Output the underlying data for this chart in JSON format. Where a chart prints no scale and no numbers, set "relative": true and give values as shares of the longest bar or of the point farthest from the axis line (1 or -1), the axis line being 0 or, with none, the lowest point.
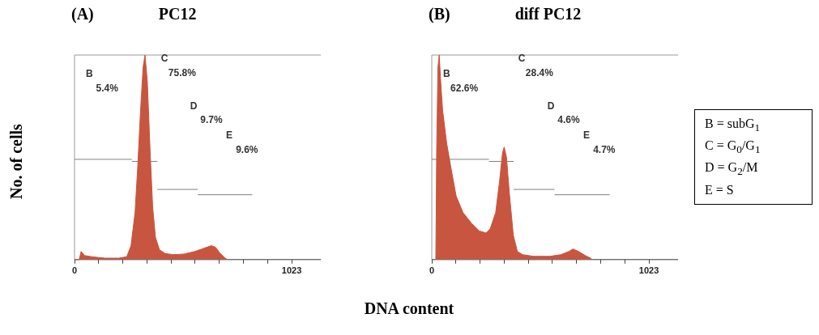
{
  "chart_data": [
    {
      "type": "area",
      "title": "(A)",
      "subtitle": "PC12",
      "xlabel": "DNA content",
      "ylabel": "No. of cells",
      "relative": true,
      "xlim": [
        0,
        1160
      ],
      "xticks": [
        {
          "value": 0,
          "label": "0"
        },
        {
          "value": 113.7,
          "label": null
        },
        {
          "value": 227.3,
          "label": null
        },
        {
          "value": 341,
          "label": null
        },
        {
          "value": 454.7,
          "label": null
        },
        {
          "value": 568.3,
          "label": null
        },
        {
          "value": 682,
          "label": null
        },
        {
          "value": 795.7,
          "label": null
        },
        {
          "value": 909.3,
          "label": null
        },
        {
          "value": 1023,
          "label": "1023"
        }
      ],
      "series": [
        {
          "type": "area",
          "color": "#c8553f",
          "x": [
            0,
            22,
            31,
            47,
            80,
            144,
            208,
            246,
            266,
            285,
            298,
            311,
            323,
            332,
            343,
            356,
            368,
            381,
            400,
            426,
            465,
            516,
            567,
            606,
            644,
            664,
            683,
            709,
            721
          ],
          "values": [
            0,
            0,
            0.04,
            0.02,
            0.014,
            0.007,
            0.007,
            0.014,
            0.068,
            0.23,
            0.46,
            0.73,
            0.94,
            1,
            0.87,
            0.53,
            0.26,
            0.11,
            0.048,
            0.03,
            0.024,
            0.027,
            0.04,
            0.054,
            0.068,
            0.061,
            0.034,
            0.007,
            0
          ]
        },
        {
          "type": "line",
          "color": "#7f7f7f",
          "x": [
            0,
            270
          ],
          "values": [
            0.49,
            0.49
          ]
        },
        {
          "type": "line",
          "color": "#7f7f7f",
          "x": [
            270,
            390
          ],
          "values": [
            0.48,
            0.48
          ]
        },
        {
          "type": "line",
          "color": "#7f7f7f",
          "x": [
            390,
            580
          ],
          "values": [
            0.343,
            0.343
          ]
        },
        {
          "type": "line",
          "color": "#7f7f7f",
          "x": [
            580,
            837
          ],
          "values": [
            0.317,
            0.317
          ]
        }
      ],
      "annotations": [
        "B",
        "5.4%",
        "C",
        "75.8%",
        "D",
        "9.7%",
        "E",
        "9.6%"
      ]
    },
    {
      "type": "area",
      "title": "(B)",
      "subtitle": "diff PC12",
      "relative": true,
      "xlim": [
        0,
        1160
      ],
      "xticks": [
        {
          "value": 0,
          "label": "0"
        },
        {
          "value": 113.7,
          "label": null
        },
        {
          "value": 227.3,
          "label": null
        },
        {
          "value": 341,
          "label": null
        },
        {
          "value": 454.7,
          "label": null
        },
        {
          "value": 568.3,
          "label": null
        },
        {
          "value": 682,
          "label": null
        },
        {
          "value": 795.7,
          "label": null
        },
        {
          "value": 909.3,
          "label": null
        },
        {
          "value": 1023,
          "label": "1023"
        }
      ],
      "series": [
        {
          "type": "area",
          "color": "#c8553f",
          "x": [
            19,
            23,
            29,
            35,
            42,
            51,
            70,
            90,
            115,
            147,
            185,
            224,
            256,
            275,
            301,
            320,
            333,
            341,
            352,
            365,
            384,
            403,
            428,
            480,
            556,
            608,
            646,
            665,
            691,
            723,
            748,
            755
          ],
          "values": [
            0,
            0.53,
            0.94,
            1,
            0.87,
            0.73,
            0.57,
            0.45,
            0.31,
            0.23,
            0.18,
            0.14,
            0.13,
            0.15,
            0.23,
            0.39,
            0.52,
            0.55,
            0.5,
            0.33,
            0.12,
            0.04,
            0.024,
            0.016,
            0.016,
            0.024,
            0.04,
            0.052,
            0.04,
            0.02,
            0.007,
            0
          ]
        },
        {
          "type": "line",
          "color": "#7f7f7f",
          "x": [
            0,
            269
          ],
          "values": [
            0.49,
            0.49
          ]
        },
        {
          "type": "line",
          "color": "#7f7f7f",
          "x": [
            269,
            386
          ],
          "values": [
            0.48,
            0.48
          ]
        },
        {
          "type": "line",
          "color": "#7f7f7f",
          "x": [
            386,
            578
          ],
          "values": [
            0.343,
            0.343
          ]
        },
        {
          "type": "line",
          "color": "#7f7f7f",
          "x": [
            578,
            838
          ],
          "values": [
            0.317,
            0.317
          ]
        }
      ],
      "annotations": [
        "B",
        "62.6%",
        "C",
        "28.4%",
        "D",
        "4.6%",
        "E",
        "4.7%"
      ]
    },
    {
      "type": "other",
      "annotations": [
        "B = subG$_{1}$",
        "C = G$_{0}$/G$_{1}$",
        "D = G$_{2}$/M",
        "E = S"
      ]
    }
  ]
}
